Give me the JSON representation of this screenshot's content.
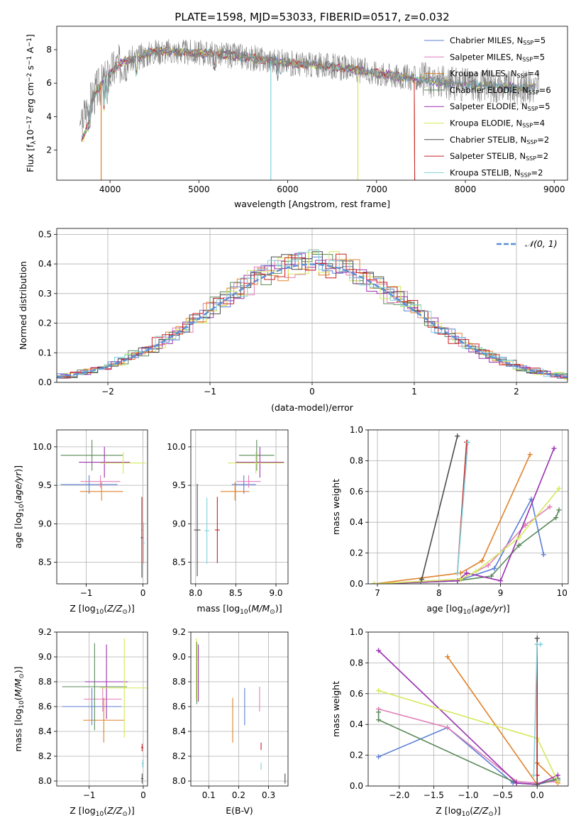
{
  "title": "PLATE=1598, MJD=53033, FIBERID=0517, z=0.032",
  "colors": {
    "chabrier_miles": "#5b7fd6",
    "salpeter_miles": "#e07fb7",
    "kroupa_miles": "#e0822a",
    "chabrier_elodie": "#5a8a5a",
    "salpeter_elodie": "#9a32b0",
    "kroupa_elodie": "#d6e85a",
    "chabrier_stelib": "#4d4d4d",
    "salpeter_stelib": "#c82020",
    "kroupa_stelib": "#82d2dc",
    "data": "#808080",
    "normal": "#5b8ed6"
  },
  "chart_data": [
    {
      "id": "spectrum",
      "type": "line",
      "xlabel": "wavelength [Angstrom, rest frame]",
      "ylabel": "Flux [f_λ 10^-17 erg cm^-2 s^-1 A^-1]",
      "xlim": [
        3400,
        9150
      ],
      "ylim": [
        0.2,
        9.4
      ],
      "xticks": [
        "4000",
        "5000",
        "6000",
        "7000",
        "8000",
        "9000"
      ],
      "yticks": [
        "2",
        "4",
        "6",
        "8"
      ],
      "legend": "top-right",
      "legend_entries": [
        {
          "label": "Chabrier MILES, N_SSP=5",
          "color": "chabrier_miles"
        },
        {
          "label": "Salpeter MILES, N_SSP=5",
          "color": "salpeter_miles"
        },
        {
          "label": "Kroupa MILES, N_SSP=4",
          "color": "kroupa_miles"
        },
        {
          "label": "Chabrier ELODIE, N_SSP=6",
          "color": "chabrier_elodie"
        },
        {
          "label": "Salpeter ELODIE, N_SSP=5",
          "color": "salpeter_elodie"
        },
        {
          "label": "Kroupa ELODIE, N_SSP=4",
          "color": "kroupa_elodie"
        },
        {
          "label": "Chabrier STELIB, N_SSP=2",
          "color": "chabrier_stelib"
        },
        {
          "label": "Salpeter STELIB, N_SSP=2",
          "color": "salpeter_stelib"
        },
        {
          "label": "Kroupa STELIB, N_SSP=2",
          "color": "kroupa_stelib"
        }
      ],
      "continuum": [
        [
          3680,
          3.8
        ],
        [
          3750,
          4.6
        ],
        [
          3850,
          5.6
        ],
        [
          3950,
          6.2
        ],
        [
          4050,
          6.9
        ],
        [
          4150,
          7.3
        ],
        [
          4300,
          7.5
        ],
        [
          4500,
          7.9
        ],
        [
          4700,
          7.9
        ],
        [
          5000,
          7.8
        ],
        [
          5300,
          7.7
        ],
        [
          5600,
          7.5
        ],
        [
          6000,
          7.2
        ],
        [
          6500,
          7.0
        ],
        [
          7000,
          6.6
        ],
        [
          7400,
          6.3
        ],
        [
          7800,
          6.0
        ],
        [
          8200,
          5.9
        ],
        [
          8600,
          5.7
        ],
        [
          8800,
          5.8
        ]
      ]
    },
    {
      "id": "residuals",
      "type": "step",
      "xlabel": "(data-model)/error",
      "ylabel": "Normed distribution",
      "xlim": [
        -2.5,
        2.5
      ],
      "ylim": [
        0,
        0.52
      ],
      "xticks": [
        "−2",
        "−1",
        "0",
        "1",
        "2"
      ],
      "yticks": [
        "0.0",
        "0.1",
        "0.2",
        "0.3",
        "0.4",
        "0.5"
      ],
      "grid": true,
      "legend": "top-right",
      "legend_label": "𝒩(0, 1)",
      "bin_width": 0.1
    },
    {
      "id": "age_vs_Z",
      "type": "errorbar",
      "xlabel": "Z [log10(Z/Z☉)]",
      "ylabel": "age  [log10(age/yr)]",
      "xlim": [
        -1.52,
        0.08
      ],
      "ylim": [
        8.22,
        10.22
      ],
      "xticks": [
        "−1",
        "0"
      ],
      "yticks": [
        "8.5",
        "9.0",
        "9.5",
        "10.0"
      ],
      "grid": true,
      "points": [
        {
          "m": "chabrier_miles",
          "x": -0.95,
          "xe": 0.5,
          "y": 9.51,
          "ye": 0.12
        },
        {
          "m": "salpeter_miles",
          "x": -0.75,
          "xe": 0.35,
          "y": 9.55,
          "ye": 0.08
        },
        {
          "m": "kroupa_miles",
          "x": -0.73,
          "xe": 0.38,
          "y": 9.42,
          "ye": 0.12
        },
        {
          "m": "chabrier_elodie",
          "x": -0.9,
          "xe": 0.55,
          "y": 9.89,
          "ye": 0.2
        },
        {
          "m": "salpeter_elodie",
          "x": -0.68,
          "xe": 0.45,
          "y": 9.8,
          "ye": 0.2
        },
        {
          "m": "kroupa_elodie",
          "x": -0.35,
          "xe": 0.4,
          "y": 9.79,
          "ye": 0.14
        },
        {
          "m": "chabrier_stelib",
          "x": -0.02,
          "xe": 0.02,
          "y": 8.82,
          "ye": 0.52
        },
        {
          "m": "salpeter_stelib",
          "x": -0.02,
          "xe": 0.01,
          "y": 8.92,
          "ye": 0.43
        },
        {
          "m": "kroupa_stelib",
          "x": 0.01,
          "xe": 0.02,
          "y": 8.75,
          "ye": 0.27
        }
      ]
    },
    {
      "id": "age_vs_mass",
      "type": "errorbar",
      "xlabel": "mass [log10(M/M☉)]",
      "ylabel": "",
      "xlim": [
        7.94,
        9.15
      ],
      "ylim": [
        8.22,
        10.22
      ],
      "xticks": [
        "8.0",
        "8.5",
        "9.0"
      ],
      "yticks": [
        "8.5",
        "9.0",
        "9.5",
        "10.0"
      ],
      "grid": true,
      "points": [
        {
          "m": "chabrier_miles",
          "x": 8.6,
          "xe": 0.15,
          "y": 9.51,
          "ye": 0.12
        },
        {
          "m": "salpeter_miles",
          "x": 8.66,
          "xe": 0.15,
          "y": 9.55,
          "ye": 0.08
        },
        {
          "m": "kroupa_miles",
          "x": 8.49,
          "xe": 0.18,
          "y": 9.42,
          "ye": 0.12
        },
        {
          "m": "chabrier_elodie",
          "x": 8.76,
          "xe": 0.22,
          "y": 9.89,
          "ye": 0.2
        },
        {
          "m": "salpeter_elodie",
          "x": 8.8,
          "xe": 0.3,
          "y": 9.8,
          "ye": 0.2
        },
        {
          "m": "kroupa_elodie",
          "x": 8.75,
          "xe": 0.35,
          "y": 9.79,
          "ye": 0.14
        },
        {
          "m": "chabrier_stelib",
          "x": 8.02,
          "xe": 0.04,
          "y": 8.92,
          "ye": 0.6
        },
        {
          "m": "salpeter_stelib",
          "x": 8.27,
          "xe": 0.03,
          "y": 8.92,
          "ye": 0.43
        },
        {
          "m": "kroupa_stelib",
          "x": 8.14,
          "xe": 0.03,
          "y": 8.91,
          "ye": 0.43
        }
      ]
    },
    {
      "id": "mass_weight_vs_age",
      "type": "line",
      "xlabel": "age  [log10(age/yr)]",
      "ylabel": "mass weight",
      "xlim": [
        6.85,
        10.1
      ],
      "ylim": [
        0,
        1.0
      ],
      "xticks": [
        "7",
        "8",
        "9",
        "10"
      ],
      "yticks": [
        "0.0",
        "0.2",
        "0.4",
        "0.6",
        "0.8",
        "1.0"
      ],
      "grid": true,
      "series": [
        {
          "m": "chabrier_miles",
          "points": [
            [
              6.95,
              0.0
            ],
            [
              8.3,
              0.02
            ],
            [
              8.9,
              0.1
            ],
            [
              9.5,
              0.55
            ],
            [
              9.7,
              0.19
            ]
          ]
        },
        {
          "m": "salpeter_miles",
          "points": [
            [
              6.95,
              0.0
            ],
            [
              8.35,
              0.03
            ],
            [
              8.8,
              0.12
            ],
            [
              9.4,
              0.38
            ],
            [
              9.8,
              0.5
            ]
          ]
        },
        {
          "m": "kroupa_miles",
          "points": [
            [
              6.95,
              0.0
            ],
            [
              8.35,
              0.07
            ],
            [
              8.7,
              0.15
            ],
            [
              9.48,
              0.84
            ]
          ]
        },
        {
          "m": "chabrier_elodie",
          "points": [
            [
              6.95,
              0.0
            ],
            [
              7.7,
              0.01
            ],
            [
              8.3,
              0.02
            ],
            [
              8.85,
              0.05
            ],
            [
              9.3,
              0.25
            ],
            [
              9.9,
              0.43
            ],
            [
              9.95,
              0.48
            ]
          ]
        },
        {
          "m": "salpeter_elodie",
          "points": [
            [
              6.95,
              0.0
            ],
            [
              8.3,
              0.02
            ],
            [
              8.45,
              0.07
            ],
            [
              9.0,
              0.02
            ],
            [
              9.87,
              0.88
            ]
          ]
        },
        {
          "m": "kroupa_elodie",
          "points": [
            [
              6.95,
              0.0
            ],
            [
              8.35,
              0.03
            ],
            [
              8.6,
              0.08
            ],
            [
              9.3,
              0.3
            ],
            [
              9.95,
              0.62
            ]
          ]
        },
        {
          "m": "chabrier_stelib",
          "points": [
            [
              7.72,
              0.03
            ],
            [
              8.3,
              0.96
            ]
          ]
        },
        {
          "m": "salpeter_stelib",
          "points": [
            [
              8.3,
              0.07
            ],
            [
              8.45,
              0.92
            ]
          ]
        },
        {
          "m": "kroupa_stelib",
          "points": [
            [
              8.3,
              0.07
            ],
            [
              8.47,
              0.92
            ]
          ]
        }
      ]
    },
    {
      "id": "mass_vs_Z",
      "type": "errorbar",
      "xlabel": "Z [log10(Z/Z☉)]",
      "ylabel": "mass [log10(M/M☉)]",
      "xlim": [
        -1.6,
        0.08
      ],
      "ylim": [
        7.96,
        9.2
      ],
      "xticks": [
        "−1",
        "0"
      ],
      "yticks": [
        "8.0",
        "8.2",
        "8.4",
        "8.6",
        "8.8",
        "9.0",
        "9.2"
      ],
      "grid": true,
      "points": [
        {
          "m": "chabrier_miles",
          "x": -0.95,
          "xe": 0.55,
          "y": 8.6,
          "ye": 0.15
        },
        {
          "m": "salpeter_miles",
          "x": -0.75,
          "xe": 0.35,
          "y": 8.66,
          "ye": 0.1
        },
        {
          "m": "kroupa_miles",
          "x": -0.73,
          "xe": 0.38,
          "y": 8.49,
          "ye": 0.18
        },
        {
          "m": "chabrier_elodie",
          "x": -0.9,
          "xe": 0.6,
          "y": 8.76,
          "ye": 0.35
        },
        {
          "m": "salpeter_elodie",
          "x": -0.68,
          "xe": 0.4,
          "y": 8.8,
          "ye": 0.3
        },
        {
          "m": "kroupa_elodie",
          "x": -0.35,
          "xe": 0.45,
          "y": 8.75,
          "ye": 0.4
        },
        {
          "m": "chabrier_stelib",
          "x": -0.02,
          "xe": 0.02,
          "y": 8.02,
          "ye": 0.04
        },
        {
          "m": "salpeter_stelib",
          "x": -0.02,
          "xe": 0.02,
          "y": 8.27,
          "ye": 0.03
        },
        {
          "m": "kroupa_stelib",
          "x": -0.01,
          "xe": 0.02,
          "y": 8.14,
          "ye": 0.03
        }
      ]
    },
    {
      "id": "mass_vs_ebv",
      "type": "errorbar",
      "xlabel": "E(B-V)",
      "ylabel": "",
      "xlim": [
        0.04,
        0.365
      ],
      "ylim": [
        7.96,
        9.2
      ],
      "xticks": [
        "0.1",
        "0.2",
        "0.3"
      ],
      "yticks": [
        "8.0",
        "8.2",
        "8.4",
        "8.6",
        "8.8",
        "9.0",
        "9.2"
      ],
      "grid": true,
      "points": [
        {
          "m": "chabrier_miles",
          "x": 0.22,
          "xe": 0.0,
          "y": 8.6,
          "ye": 0.15
        },
        {
          "m": "salpeter_miles",
          "x": 0.27,
          "xe": 0.0,
          "y": 8.66,
          "ye": 0.1
        },
        {
          "m": "kroupa_miles",
          "x": 0.18,
          "xe": 0.0,
          "y": 8.49,
          "ye": 0.18
        },
        {
          "m": "chabrier_elodie",
          "x": 0.06,
          "xe": 0.0,
          "y": 8.87,
          "ye": 0.25
        },
        {
          "m": "salpeter_elodie",
          "x": 0.065,
          "xe": 0.0,
          "y": 8.87,
          "ye": 0.23
        },
        {
          "m": "kroupa_elodie",
          "x": 0.058,
          "xe": 0.0,
          "y": 8.9,
          "ye": 0.25
        },
        {
          "m": "chabrier_stelib",
          "x": 0.355,
          "xe": 0.0,
          "y": 8.02,
          "ye": 0.04
        },
        {
          "m": "salpeter_stelib",
          "x": 0.275,
          "xe": 0.0,
          "y": 8.28,
          "ye": 0.03
        },
        {
          "m": "kroupa_stelib",
          "x": 0.275,
          "xe": 0.0,
          "y": 8.12,
          "ye": 0.03
        }
      ]
    },
    {
      "id": "mass_weight_vs_Z",
      "type": "line",
      "xlabel": "Z [log10(Z/Z☉)]",
      "ylabel": "mass weight",
      "xlim": [
        -2.45,
        0.45
      ],
      "ylim": [
        0,
        1.0
      ],
      "xticks": [
        "−2.0",
        "−1.5",
        "−1.0",
        "−0.5",
        "0.0"
      ],
      "yticks": [
        "0.0",
        "0.2",
        "0.4",
        "0.6",
        "0.8",
        "1.0"
      ],
      "grid": true,
      "series": [
        {
          "m": "chabrier_miles",
          "points": [
            [
              -2.3,
              0.19
            ],
            [
              -1.3,
              0.38
            ],
            [
              -0.35,
              0.02
            ],
            [
              0.0,
              0.01
            ],
            [
              0.3,
              0.04
            ]
          ]
        },
        {
          "m": "salpeter_miles",
          "points": [
            [
              -2.3,
              0.5
            ],
            [
              -1.3,
              0.38
            ],
            [
              -0.3,
              0.03
            ],
            [
              0.0,
              0.02
            ],
            [
              0.3,
              0.03
            ]
          ]
        },
        {
          "m": "kroupa_miles",
          "points": [
            [
              -1.3,
              0.84
            ],
            [
              0.0,
              0.01
            ],
            [
              0.0,
              0.15
            ],
            [
              0.3,
              0.02
            ]
          ]
        },
        {
          "m": "chabrier_elodie",
          "points": [
            [
              -2.3,
              0.48
            ],
            [
              -2.3,
              0.43
            ],
            [
              -0.3,
              0.02
            ],
            [
              0.0,
              0.01
            ],
            [
              0.3,
              0.05
            ]
          ]
        },
        {
          "m": "salpeter_elodie",
          "points": [
            [
              -2.3,
              0.88
            ],
            [
              -0.3,
              0.02
            ],
            [
              0.0,
              0.01
            ],
            [
              0.3,
              0.07
            ]
          ]
        },
        {
          "m": "kroupa_elodie",
          "points": [
            [
              -2.3,
              0.62
            ],
            [
              0.0,
              0.31
            ],
            [
              0.3,
              0.03
            ]
          ]
        },
        {
          "m": "chabrier_stelib",
          "points": [
            [
              0.0,
              0.01
            ],
            [
              0.0,
              0.96
            ]
          ]
        },
        {
          "m": "salpeter_stelib",
          "points": [
            [
              0.0,
              0.07
            ],
            [
              0.0,
              0.92
            ]
          ]
        },
        {
          "m": "kroupa_stelib",
          "points": [
            [
              -0.05,
              0.07
            ],
            [
              0.0,
              0.92
            ],
            [
              0.05,
              0.92
            ]
          ]
        }
      ]
    }
  ]
}
